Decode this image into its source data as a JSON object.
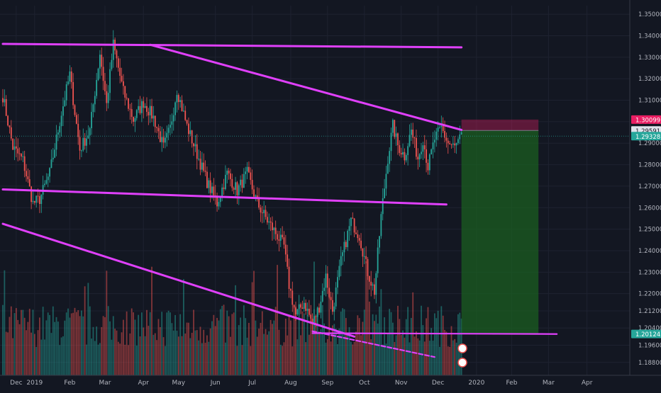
{
  "chart_data": {
    "type": "candlestick",
    "instrument": "",
    "x_ticks": [
      "Dec",
      "2019",
      "Feb",
      "Mar",
      "Apr",
      "May",
      "Jun",
      "Jul",
      "Aug",
      "Sep",
      "Oct",
      "Nov",
      "Dec",
      "2020",
      "Feb",
      "Mar",
      "Apr"
    ],
    "x_tick_index": [
      8,
      19,
      40,
      61,
      84,
      105,
      127,
      149,
      172,
      194,
      216,
      238,
      260,
      283,
      304,
      326,
      349
    ],
    "y_ticks": [
      "1.35000",
      "1.34000",
      "1.33000",
      "1.32000",
      "1.31000",
      "1.30000",
      "1.29000",
      "1.28000",
      "1.27000",
      "1.26000",
      "1.25000",
      "1.24000",
      "1.23000",
      "1.22000",
      "1.21200",
      "1.20400",
      "1.19600",
      "1.18800"
    ],
    "y_range": [
      1.182,
      1.354
    ],
    "price_badges": [
      {
        "label": "1.30099",
        "value": 1.30099,
        "color": "#e91e63"
      },
      {
        "label": "1.29591",
        "value": 1.29591,
        "color": "#e0e3eb"
      },
      {
        "label": "1.29328",
        "value": 1.29328,
        "color": "#26a69a"
      },
      {
        "label": "1.20124",
        "value": 1.20124,
        "color": "#26a69a"
      }
    ],
    "anchors": [
      [
        0,
        1.312
      ],
      [
        6,
        1.288
      ],
      [
        12,
        1.282
      ],
      [
        18,
        1.262
      ],
      [
        22,
        1.264
      ],
      [
        28,
        1.276
      ],
      [
        35,
        1.304
      ],
      [
        40,
        1.322
      ],
      [
        46,
        1.287
      ],
      [
        52,
        1.296
      ],
      [
        58,
        1.332
      ],
      [
        62,
        1.308
      ],
      [
        66,
        1.336
      ],
      [
        72,
        1.314
      ],
      [
        78,
        1.301
      ],
      [
        84,
        1.309
      ],
      [
        90,
        1.302
      ],
      [
        96,
        1.288
      ],
      [
        100,
        1.297
      ],
      [
        104,
        1.315
      ],
      [
        110,
        1.298
      ],
      [
        116,
        1.285
      ],
      [
        122,
        1.272
      ],
      [
        128,
        1.262
      ],
      [
        134,
        1.276
      ],
      [
        140,
        1.268
      ],
      [
        146,
        1.276
      ],
      [
        152,
        1.262
      ],
      [
        158,
        1.254
      ],
      [
        164,
        1.247
      ],
      [
        168,
        1.242
      ],
      [
        171,
        1.224
      ],
      [
        175,
        1.21
      ],
      [
        180,
        1.216
      ],
      [
        185,
        1.206
      ],
      [
        189,
        1.214
      ],
      [
        193,
        1.228
      ],
      [
        197,
        1.212
      ],
      [
        202,
        1.235
      ],
      [
        208,
        1.254
      ],
      [
        213,
        1.247
      ],
      [
        218,
        1.23
      ],
      [
        222,
        1.221
      ],
      [
        226,
        1.256
      ],
      [
        230,
        1.283
      ],
      [
        233,
        1.298
      ],
      [
        236,
        1.289
      ],
      [
        240,
        1.284
      ],
      [
        244,
        1.296
      ],
      [
        248,
        1.283
      ],
      [
        251,
        1.292
      ],
      [
        254,
        1.279
      ],
      [
        258,
        1.292
      ],
      [
        262,
        1.297
      ],
      [
        266,
        1.29
      ],
      [
        270,
        1.288
      ],
      [
        274,
        1.293
      ]
    ],
    "trendlines": [
      {
        "start": [
          0,
          1.3362
        ],
        "end": [
          274,
          1.3346
        ]
      },
      {
        "start": [
          88,
          1.3358
        ],
        "end": [
          274,
          1.2962
        ]
      },
      {
        "start": [
          0,
          1.2685
        ],
        "end": [
          265,
          1.2615
        ]
      },
      {
        "start": [
          0,
          1.2525
        ],
        "end": [
          210,
          1.2
        ]
      },
      {
        "start": [
          185,
          1.2016
        ],
        "end": [
          331,
          1.2012
        ]
      },
      {
        "start": [
          185,
          1.2025
        ],
        "end": [
          258,
          1.1905
        ]
      }
    ],
    "position": {
      "start": 274,
      "end": 320,
      "entry": 1.29591,
      "stop": 1.30099,
      "target": 1.20124
    },
    "candle_count": 275
  }
}
